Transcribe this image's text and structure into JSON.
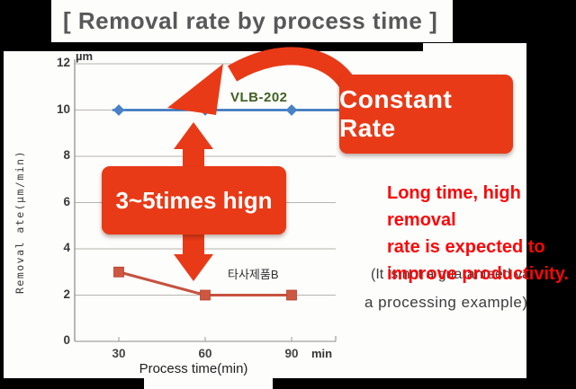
{
  "title": "[ Removal rate by process time ]",
  "chart_data": {
    "type": "line",
    "xlabel": "Process time(min)",
    "ylabel": "Removal ate(µm/min)",
    "y_unit_label": "µm",
    "x_unit_label": "min",
    "x": [
      30,
      60,
      90
    ],
    "xtick_labels": [
      "30",
      "60",
      "90"
    ],
    "ytick_values": [
      0,
      2,
      4,
      6,
      8,
      10,
      12
    ],
    "ylim": [
      0,
      12
    ],
    "grid": "horizontal",
    "legend_position": "inline-labels",
    "series": [
      {
        "name": "VLB-202",
        "values": [
          10,
          10,
          10
        ],
        "color": "#2e6fba",
        "marker": "diamond",
        "marker_color": "#4a80c6",
        "extend_line": true
      },
      {
        "name": "타사제품B",
        "values": [
          3,
          2,
          2
        ],
        "color": "#c6523f",
        "marker": "square",
        "marker_color": "#ce5742",
        "extend_line": false
      }
    ]
  },
  "annotations": {
    "constant_rate_label": "Constant Rate",
    "times_high_label": "3~5times hign",
    "note_red_line1": "Long time, high removal",
    "note_red_line2": "rate is expected to",
    "note_red_line3": "improve productivity.",
    "note_gray_line1": "(It is not a guaranteed va",
    "note_gray_line2": "a processing example)",
    "callout_color": "#e93a17",
    "note_red_color": "#fb0606"
  }
}
